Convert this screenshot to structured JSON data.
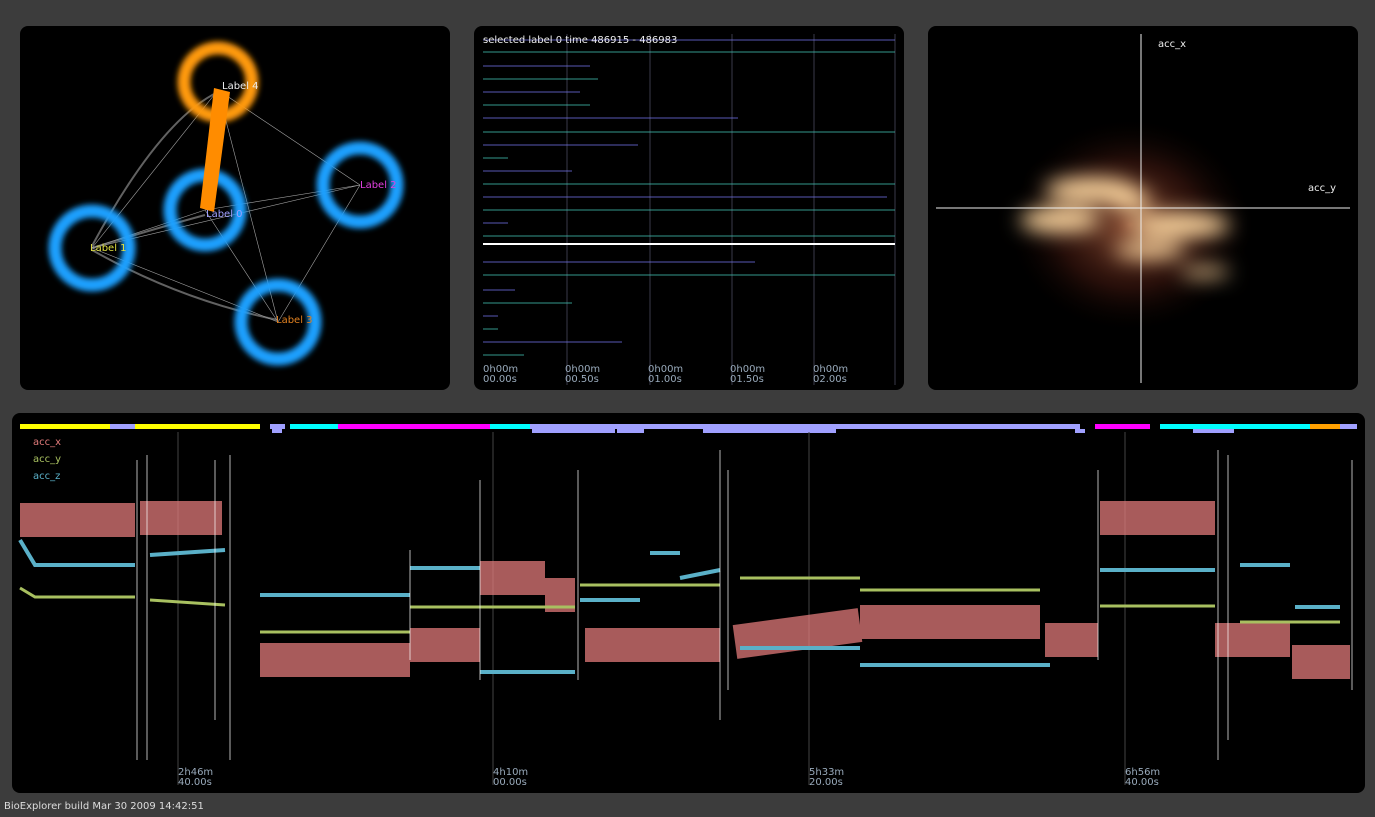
{
  "graph_panel": {
    "nodes": [
      {
        "label": "Label 4"
      },
      {
        "label": "Label 2"
      },
      {
        "label": "Label 0"
      },
      {
        "label": "Label 1"
      },
      {
        "label": "Label 3"
      }
    ]
  },
  "timeline_panel": {
    "title": "selected label 0 time 486915 - 486983",
    "ticks": [
      [
        "0h00m",
        "00.00s"
      ],
      [
        "0h00m",
        "00.50s"
      ],
      [
        "0h00m",
        "01.00s"
      ],
      [
        "0h00m",
        "01.50s"
      ],
      [
        "0h00m",
        "02.00s"
      ]
    ]
  },
  "scatter_panel": {
    "x_axis_label": "acc_x",
    "y_axis_label": "acc_y"
  },
  "signal_panel": {
    "legend": [
      "acc_x",
      "acc_y",
      "acc_z"
    ],
    "ticks": [
      [
        "2h46m",
        "40.00s"
      ],
      [
        "4h10m",
        "00.00s"
      ],
      [
        "5h33m",
        "20.00s"
      ],
      [
        "6h56m",
        "40.00s"
      ]
    ]
  },
  "footer": {
    "build": "BioExplorer build Mar 30 2009 14:42:51"
  }
}
